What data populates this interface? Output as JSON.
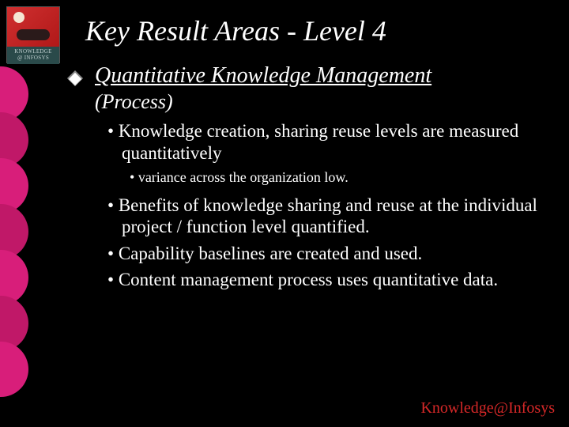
{
  "logo": {
    "line1": "KNOWLEDGE",
    "line2": "@ INFOSYS"
  },
  "title": "Key Result Areas - Level 4",
  "heading": "Quantitative Knowledge Management",
  "subhead": "(Process)",
  "bullets_lvl2": [
    "Knowledge creation, sharing reuse levels are measured quantitatively",
    "Benefits of knowledge sharing and reuse at the individual project / function level quantified.",
    "Capability baselines are created and used.",
    "Content management process uses quantitative data."
  ],
  "bullets_lvl3_after_0": [
    "variance across the organization low."
  ],
  "footer": "Knowledge@Infosys",
  "ribbon_colors": [
    "#d81e7a",
    "#c01868",
    "#d81e7a",
    "#c01868",
    "#d81e7a",
    "#c01868",
    "#d81e7a"
  ]
}
